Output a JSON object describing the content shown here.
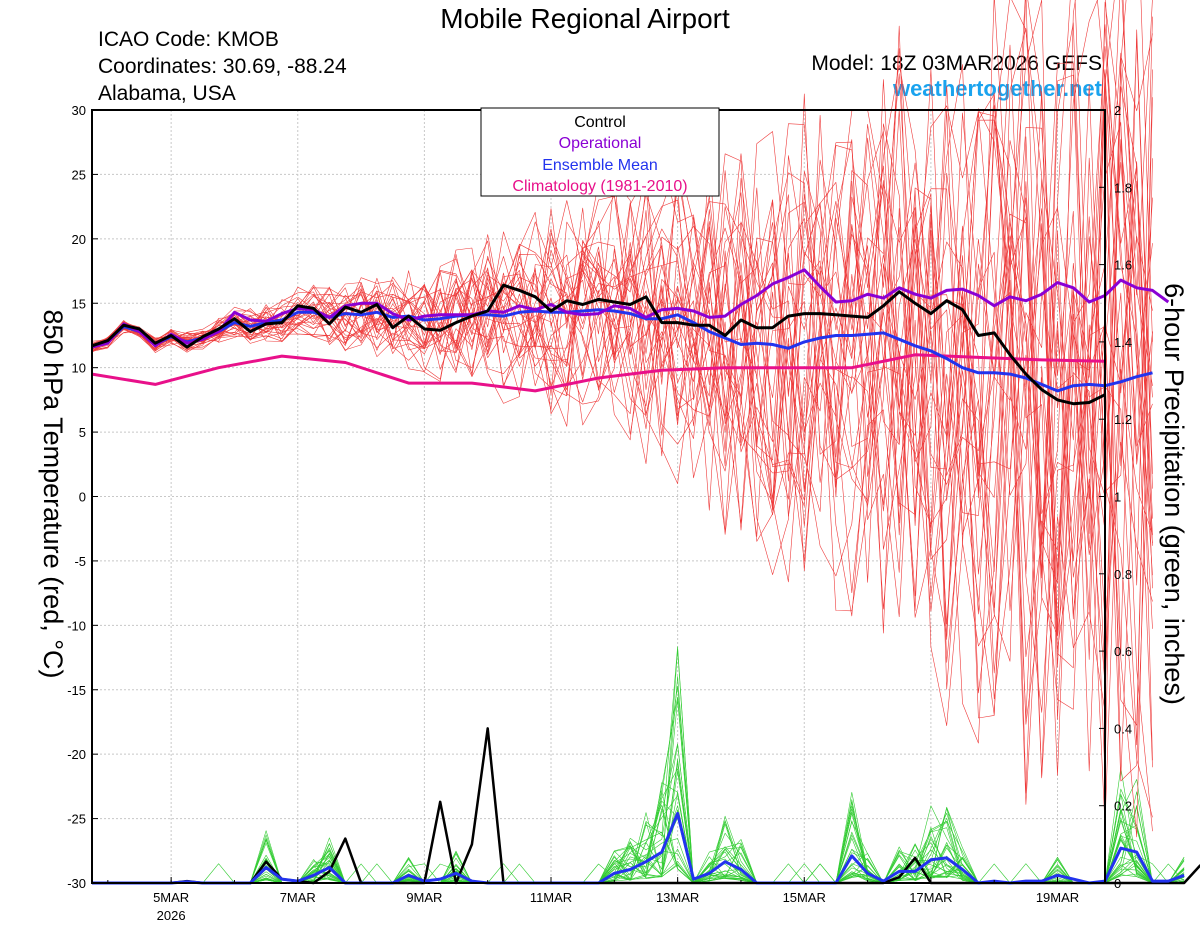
{
  "header": {
    "title": "Mobile Regional Airport",
    "icao": "ICAO Code: KMOB",
    "coordinates": "Coordinates: 30.69, -88.24",
    "region": "Alabama, USA",
    "model": "Model: 18Z 03MAR2026 GEFS",
    "site": "weathertogether.net"
  },
  "colors": {
    "members_temp": "#ee3b3b",
    "members_precip": "#33cc33",
    "control": "#000000",
    "operational": "#8a00d4",
    "ensemble_mean": "#2233ee",
    "climatology": "#e8108a",
    "site": "#1aa3ee"
  },
  "chart_data": {
    "type": "line",
    "title": "Mobile Regional Airport",
    "xlabel": "",
    "ylabel_left": "850 hPa Temperature (red, °C)",
    "ylabel_right": "6-hour Precipitation (green, inches)",
    "x_units": "days since 00Z 03MAR2026",
    "x_range": [
      0.75,
      16.75
    ],
    "x_ticks": [
      {
        "x": 2,
        "label": "5MAR",
        "sub": "2026"
      },
      {
        "x": 4,
        "label": "7MAR"
      },
      {
        "x": 6,
        "label": "9MAR"
      },
      {
        "x": 8,
        "label": "11MAR"
      },
      {
        "x": 10,
        "label": "13MAR"
      },
      {
        "x": 12,
        "label": "15MAR"
      },
      {
        "x": 14,
        "label": "17MAR"
      },
      {
        "x": 16,
        "label": "19MAR"
      }
    ],
    "ylim_left": [
      -30,
      30
    ],
    "yticks_left": [
      30,
      25,
      20,
      15,
      10,
      5,
      0,
      -5,
      -10,
      -15,
      -20,
      -25,
      -30
    ],
    "ylim_right": [
      0,
      2
    ],
    "yticks_right": [
      "2",
      "1.8",
      "1.6",
      "1.4",
      "1.2",
      "1",
      "0.8",
      "0.6",
      "0.4",
      "0.2",
      "0"
    ],
    "legend": {
      "position": "top-center",
      "entries": [
        {
          "label": "Control",
          "color": "#000000"
        },
        {
          "label": "Operational",
          "color": "#8a00d4"
        },
        {
          "label": "Ensemble Mean",
          "color": "#2233ee"
        },
        {
          "label": "Climatology (1981-2010)",
          "color": "#e8108a"
        }
      ]
    },
    "temperature": {
      "control": {
        "x0": 0.75,
        "dx": 0.25,
        "values": [
          11.7,
          12.1,
          13.3,
          13.0,
          11.9,
          12.5,
          11.6,
          12.4,
          13.0,
          13.8,
          12.8,
          13.4,
          13.5,
          14.8,
          14.6,
          13.4,
          14.7,
          14.3,
          14.9,
          13.1,
          14.0,
          13.0,
          12.9,
          13.5,
          14.0,
          14.4,
          16.4,
          16.0,
          15.5,
          14.4,
          15.2,
          14.9,
          15.3,
          15.1,
          14.9,
          15.5,
          13.5,
          13.5,
          13.3,
          13.3,
          12.5,
          13.7,
          13.1,
          13.1,
          14.0,
          14.2,
          14.2,
          14.1,
          14.0,
          13.9,
          14.8,
          15.9,
          15.0,
          14.2,
          15.2,
          14.5,
          12.5,
          12.7,
          11.0,
          9.5,
          8.3,
          7.5,
          7.2,
          7.3,
          7.9
        ]
      },
      "operational": {
        "x0": 0.75,
        "dx": 0.25,
        "values": [
          11.6,
          11.9,
          13.4,
          12.8,
          11.7,
          12.6,
          11.9,
          12.2,
          12.8,
          14.3,
          13.7,
          13.6,
          14.2,
          14.6,
          14.5,
          13.9,
          14.8,
          15.0,
          15.0,
          14.2,
          13.7,
          14.0,
          14.1,
          14.1,
          14.1,
          14.4,
          14.3,
          14.8,
          14.5,
          14.9,
          14.3,
          14.1,
          14.2,
          14.8,
          14.6,
          13.9,
          14.5,
          14.6,
          14.4,
          13.9,
          14.0,
          14.9,
          15.6,
          16.5,
          17.0,
          17.6,
          16.3,
          15.1,
          15.2,
          15.7,
          15.4,
          16.2,
          15.7,
          15.4,
          16.0,
          16.1,
          15.6,
          14.8,
          15.5,
          15.2,
          15.7,
          16.6,
          16.2,
          15.1,
          15.6,
          16.8,
          16.2,
          16.0,
          15.1
        ]
      },
      "ensemble_mean": {
        "x0": 0.75,
        "dx": 0.25,
        "values": [
          11.6,
          12.0,
          13.2,
          12.8,
          11.8,
          12.4,
          12.0,
          12.3,
          12.8,
          13.5,
          13.2,
          13.5,
          13.7,
          14.3,
          14.3,
          13.9,
          14.2,
          14.1,
          14.3,
          13.9,
          14.0,
          13.7,
          13.8,
          14.0,
          14.1,
          14.1,
          14.0,
          14.3,
          14.4,
          14.3,
          14.3,
          14.4,
          14.5,
          14.4,
          14.2,
          13.8,
          13.8,
          14.1,
          13.5,
          12.8,
          12.3,
          11.8,
          11.9,
          11.8,
          11.5,
          12.0,
          12.3,
          12.5,
          12.5,
          12.6,
          12.7,
          12.2,
          11.7,
          11.3,
          10.7,
          10.0,
          9.6,
          9.6,
          9.5,
          9.2,
          8.7,
          8.2,
          8.6,
          8.7,
          8.6,
          8.9,
          9.3,
          9.6
        ]
      },
      "climatology": {
        "x": [
          0.75,
          1.75,
          2.75,
          3.75,
          4.75,
          5.75,
          6.75,
          7.75,
          8.75,
          9.75,
          10.75,
          11.75,
          12.75,
          13.75,
          14.75,
          15.75,
          16.75
        ],
        "values": [
          9.5,
          8.7,
          10.0,
          10.9,
          10.4,
          8.8,
          8.8,
          8.2,
          9.2,
          9.8,
          10.0,
          10.0,
          10.0,
          11.0,
          10.8,
          10.6,
          10.5
        ]
      }
    },
    "precipitation": {
      "control": {
        "x0": 0.75,
        "dx": 0.25,
        "values": [
          0,
          0,
          0,
          0,
          0,
          0,
          0.005,
          0,
          0,
          0,
          0,
          0.055,
          0.01,
          0.005,
          0,
          0.03,
          0.115,
          0,
          0,
          0,
          0,
          0,
          0.21,
          0,
          0.1,
          0.4,
          0,
          0,
          0,
          0,
          0,
          0,
          0,
          0,
          0,
          0,
          0,
          0,
          0,
          0,
          0,
          0,
          0,
          0,
          0,
          0,
          0,
          0,
          0,
          0,
          0,
          0.015,
          0.065,
          0,
          0,
          0,
          0,
          0,
          0,
          0,
          0,
          0,
          0,
          0,
          0,
          0,
          0,
          0,
          0,
          0,
          0.045,
          0.01,
          0,
          0,
          0,
          0,
          0,
          0,
          0,
          0,
          0
        ]
      },
      "ensemble_mean": {
        "x0": 0.75,
        "dx": 0.25,
        "values": [
          0,
          0,
          0,
          0,
          0,
          0,
          0.003,
          0,
          0,
          0,
          0,
          0.04,
          0.01,
          0.005,
          0.02,
          0.04,
          0,
          0,
          0,
          0,
          0.02,
          0.005,
          0.01,
          0.025,
          0.005,
          0,
          0,
          0,
          0,
          0,
          0,
          0,
          0,
          0.025,
          0.035,
          0.055,
          0.08,
          0.18,
          0.01,
          0.025,
          0.055,
          0.035,
          0,
          0,
          0,
          0,
          0,
          0,
          0.07,
          0.025,
          0.005,
          0.03,
          0.03,
          0.06,
          0.065,
          0.035,
          0,
          0.005,
          0,
          0.005,
          0.005,
          0.02,
          0.01,
          0,
          0.005,
          0.09,
          0.08,
          0.005,
          0.005,
          0.02
        ]
      }
    },
    "members": {
      "count": 30,
      "note": "30 GEFS perturbation members (thin red temperature traces, thin green precipitation traces)"
    }
  }
}
